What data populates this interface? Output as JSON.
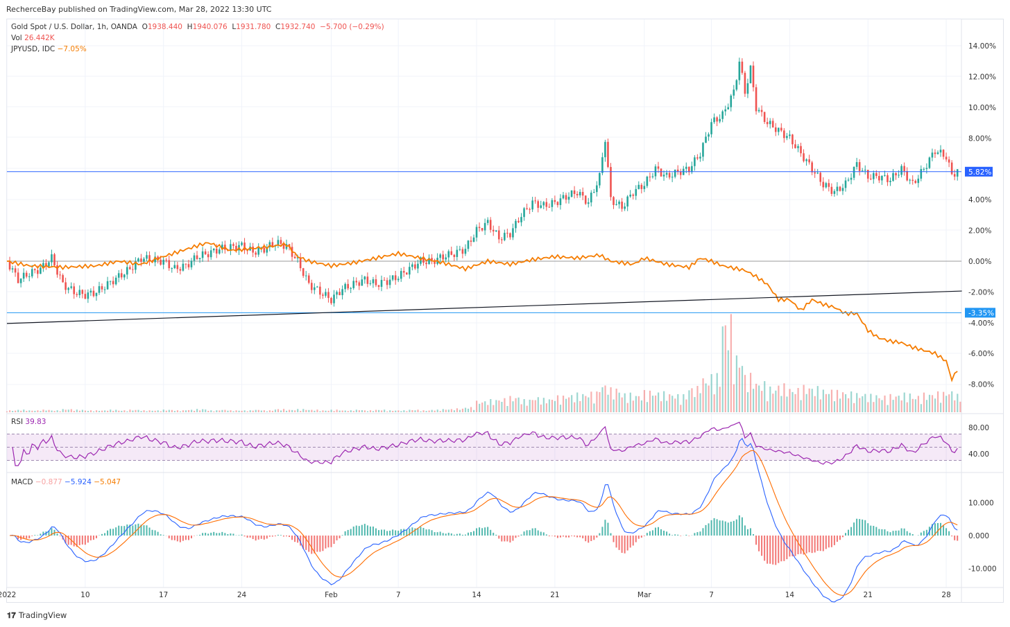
{
  "header": {
    "published": "RecherceBay published on TradingView.com, Mar 28, 2022 13:30 UTC"
  },
  "legend": {
    "symbol": "Gold Spot / U.S. Dollar, 1h, OANDA",
    "o_label": "O",
    "o": "1938.440",
    "h_label": "H",
    "h": "1940.076",
    "l_label": "L",
    "l": "1931.780",
    "c_label": "C",
    "c": "1932.740",
    "change": "−5.700 (−0.29%)",
    "vol_label": "Vol",
    "vol": "26.442K",
    "compare_label": "JPYUSD, IDC",
    "compare_value": "−7.05%",
    "rsi_label": "RSI",
    "rsi_value": "39.83",
    "macd_label": "MACD",
    "macd_hist": "−0.877",
    "macd_line": "−5.924",
    "macd_signal": "−5.047"
  },
  "footer": {
    "brand": "TradingView"
  },
  "colors": {
    "up": "#26a69a",
    "down": "#ef5350",
    "compare": "#f57c00",
    "hline": "#2962ff",
    "rsi": "#9c27b0",
    "macd": "#2962ff",
    "signal": "#ff6d00"
  },
  "chart_data": {
    "type": "line",
    "title": "Gold Spot / U.S. Dollar, 1h, OANDA vs JPYUSD",
    "x_ticks": [
      {
        "day": 0,
        "label": "2022"
      },
      {
        "day": 7,
        "label": "10"
      },
      {
        "day": 14,
        "label": "17"
      },
      {
        "day": 21,
        "label": "24"
      },
      {
        "day": 29,
        "label": "Feb"
      },
      {
        "day": 35,
        "label": "7"
      },
      {
        "day": 42,
        "label": "14"
      },
      {
        "day": 49,
        "label": "21"
      },
      {
        "day": 57,
        "label": "Mar"
      },
      {
        "day": 63,
        "label": "7"
      },
      {
        "day": 70,
        "label": "14"
      },
      {
        "day": 77,
        "label": "21"
      },
      {
        "day": 84,
        "label": "28"
      }
    ],
    "y_ticks": [
      "14.00%",
      "12.00%",
      "10.00%",
      "8.00%",
      "4.00%",
      "2.00%",
      "0.00%",
      "-2.00%",
      "-4.00%",
      "-6.00%",
      "-8.00%"
    ],
    "y_tick_values": [
      14,
      12,
      10,
      8,
      4,
      2,
      0,
      -2,
      -4,
      -6,
      -8
    ],
    "ylim": [
      -9.5,
      15.5
    ],
    "base_price": 1827,
    "series": [
      {
        "name": "XAUUSD %",
        "days": [
          0,
          1,
          2,
          3,
          4,
          5,
          6,
          7,
          8,
          9,
          10,
          11,
          12,
          14,
          15,
          16,
          17,
          18,
          19,
          21,
          22,
          23,
          24,
          25,
          26,
          27,
          28,
          29,
          30,
          31,
          32,
          33,
          34,
          35,
          36,
          37,
          38,
          39,
          40,
          41,
          42,
          43,
          44,
          45,
          46,
          47,
          48,
          49,
          50,
          51,
          52,
          53,
          53.5,
          54,
          55,
          56,
          57,
          58,
          59,
          60,
          61,
          62,
          63,
          64,
          65,
          65.5,
          66,
          66.5,
          67,
          68,
          69,
          70,
          71,
          72,
          73,
          74,
          75,
          76,
          77,
          78,
          79,
          80,
          81,
          82,
          83,
          84,
          84.5,
          85
        ],
        "values": [
          0,
          -1.2,
          -0.8,
          -0.5,
          0.2,
          -1.5,
          -2,
          -2.2,
          -2,
          -1.5,
          -1,
          -0.5,
          0.2,
          0,
          -0.5,
          -0.3,
          0.3,
          0.5,
          0.8,
          1,
          0.6,
          0.8,
          1.2,
          1,
          0,
          -1.5,
          -2,
          -2.5,
          -1.8,
          -1.5,
          -1.2,
          -1.5,
          -1.3,
          -1,
          -0.5,
          0,
          0,
          0.3,
          0.5,
          0.8,
          2,
          2.5,
          1.5,
          1.8,
          3,
          3.8,
          3.6,
          3.8,
          4.2,
          4.5,
          3.8,
          5.5,
          8,
          4,
          3.5,
          4.5,
          5,
          6,
          5.5,
          5.8,
          6,
          7,
          9,
          9.5,
          11,
          13,
          11,
          12.5,
          10,
          9,
          8.5,
          8,
          7,
          6,
          5,
          4.5,
          5,
          6.3,
          5.5,
          5.5,
          5.3,
          6,
          5,
          6,
          7.2,
          6.8,
          5.6,
          5.9
        ]
      },
      {
        "name": "JPYUSD, IDC",
        "days": [
          0,
          2,
          5,
          8,
          10,
          12,
          14,
          17,
          18,
          20,
          23,
          25,
          26,
          27,
          29,
          31,
          33,
          35,
          37,
          39,
          41,
          43,
          45,
          47,
          49,
          51,
          53,
          54,
          56,
          57,
          59,
          61,
          62,
          63,
          64,
          66,
          67,
          68,
          69,
          70,
          71,
          72,
          73,
          74,
          75,
          76,
          77,
          78,
          79,
          80,
          81,
          82,
          83,
          84,
          84.5,
          85
        ],
        "values": [
          0,
          -0.3,
          -0.4,
          -0.3,
          0,
          -0.2,
          0.3,
          1,
          1.2,
          0.7,
          0.9,
          1.1,
          0.3,
          0,
          -0.3,
          -0.1,
          0.2,
          0.5,
          0.2,
          -0.1,
          -0.5,
          0,
          -0.2,
          0.1,
          0.3,
          0.2,
          0.4,
          0,
          -0.2,
          0.2,
          -0.2,
          -0.4,
          0.2,
          0,
          -0.3,
          -0.6,
          -1,
          -1.5,
          -2.5,
          -2.5,
          -3.2,
          -2.5,
          -2.8,
          -3,
          -3.4,
          -3.4,
          -4.5,
          -5,
          -5.2,
          -5.3,
          -5.6,
          -5.8,
          -6,
          -6.5,
          -7.7,
          -7.05
        ]
      }
    ],
    "hlines": [
      {
        "value": 5.82,
        "label": "5.82%"
      },
      {
        "value": -3.35,
        "label": "-3.35%"
      }
    ],
    "trendline": {
      "from": [
        0,
        -4.05
      ],
      "to": [
        85.4,
        -1.94
      ]
    },
    "volume_k_by_day": [
      3,
      4,
      3,
      4,
      3,
      5,
      4,
      3,
      3,
      4,
      3,
      4,
      3,
      3,
      4,
      3,
      4,
      5,
      3,
      4,
      3,
      3,
      4,
      3,
      5,
      4,
      5,
      4,
      3,
      4,
      3,
      4,
      3,
      4,
      3,
      3,
      4,
      3,
      4,
      5,
      6,
      8,
      18,
      20,
      22,
      25,
      20,
      24,
      22,
      26,
      28,
      30,
      32,
      45,
      38,
      30,
      28,
      34,
      32,
      30,
      28,
      40,
      55,
      60,
      150,
      90,
      60,
      48,
      40,
      44,
      38,
      42,
      40,
      36,
      34,
      32,
      30,
      28,
      26,
      28,
      30,
      26,
      30,
      32,
      34,
      28
    ],
    "rsi": {
      "ticks": [
        80,
        40
      ],
      "band": [
        30,
        70
      ],
      "period": 14
    },
    "macd": {
      "ticks": [
        {
          "v": 10,
          "label": "10.000"
        },
        {
          "v": 0,
          "label": "0.000"
        },
        {
          "v": -10,
          "label": "-10.000"
        }
      ],
      "fast": 12,
      "slow": 26,
      "signal": 9
    }
  }
}
